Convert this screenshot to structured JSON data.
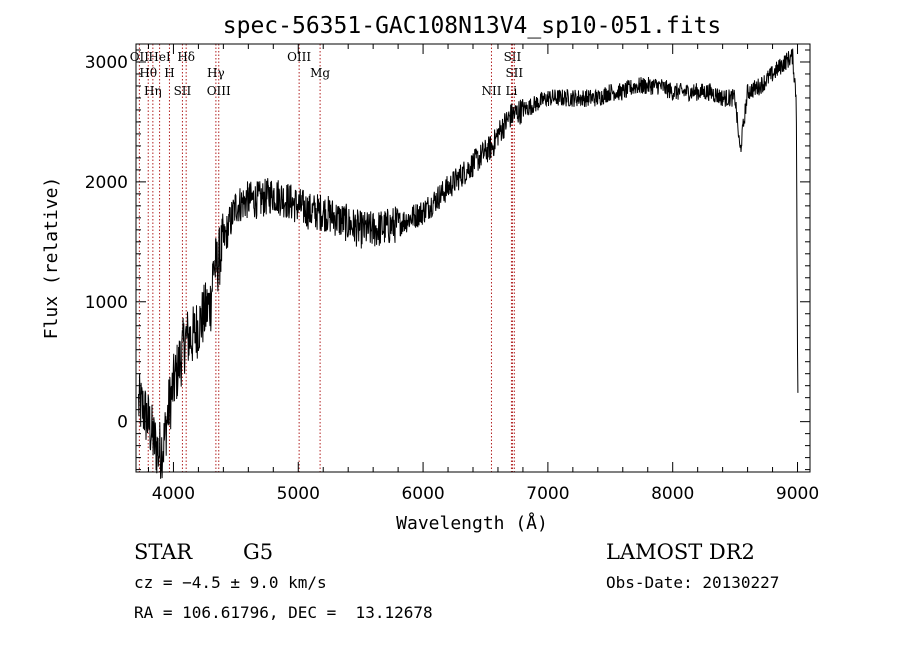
{
  "chart_data": {
    "type": "line",
    "title": "spec-56351-GAC108N13V4_sp10-051.fits",
    "xlabel": "Wavelength (Å)",
    "ylabel": "Flux (relative)",
    "xlim": [
      3700,
      9100
    ],
    "ylim": [
      -420,
      3150
    ],
    "xticks": [
      4000,
      5000,
      6000,
      7000,
      8000,
      9000
    ],
    "yticks": [
      0,
      1000,
      2000,
      3000
    ],
    "grid": false,
    "series": [
      {
        "x": [
          3720,
          3760,
          3800,
          3840,
          3880,
          3920,
          3960,
          4000,
          4050,
          4100,
          4150,
          4200,
          4250,
          4300,
          4320,
          4350,
          4400,
          4500,
          4600,
          4700,
          4800,
          4900,
          5000,
          5100,
          5200,
          5300,
          5400,
          5500,
          5600,
          5700,
          5800,
          5900,
          6000,
          6100,
          6200,
          6300,
          6400,
          6500,
          6560,
          6600,
          6700,
          6800,
          6900,
          7000,
          7100,
          7200,
          7300,
          7400,
          7500,
          7600,
          7700,
          7800,
          7900,
          8000,
          8100,
          8200,
          8300,
          8400,
          8500,
          8540,
          8600,
          8700,
          8800,
          8900,
          8960,
          8990,
          9000,
          9005
        ],
        "y": [
          150,
          100,
          0,
          -150,
          -250,
          -200,
          100,
          300,
          500,
          700,
          700,
          800,
          900,
          1000,
          1300,
          1300,
          1500,
          1800,
          1850,
          1850,
          1900,
          1850,
          1800,
          1750,
          1750,
          1700,
          1650,
          1600,
          1600,
          1620,
          1650,
          1700,
          1750,
          1850,
          1950,
          2050,
          2150,
          2250,
          2300,
          2400,
          2550,
          2600,
          2650,
          2700,
          2700,
          2700,
          2700,
          2700,
          2750,
          2750,
          2800,
          2800,
          2800,
          2750,
          2750,
          2750,
          2750,
          2700,
          2700,
          2250,
          2750,
          2800,
          2900,
          3000,
          3050,
          2700,
          600,
          0
        ]
      }
    ],
    "lines": [
      {
        "wavelength": 3727,
        "label": "OII"
      },
      {
        "wavelength": 3798,
        "label": "Hθ"
      },
      {
        "wavelength": 3835,
        "label": "Hη"
      },
      {
        "wavelength": 3889,
        "label": "HeI"
      },
      {
        "wavelength": 3968,
        "label": "H"
      },
      {
        "wavelength": 4072,
        "label": "SII"
      },
      {
        "wavelength": 4102,
        "label": "Hδ"
      },
      {
        "wavelength": 4340,
        "label": "Hγ"
      },
      {
        "wavelength": 4363,
        "label": "OIII"
      },
      {
        "wavelength": 5007,
        "label": "OIII"
      },
      {
        "wavelength": 5175,
        "label": "Mg"
      },
      {
        "wavelength": 6548,
        "label": "NII"
      },
      {
        "wavelength": 6716,
        "label": "SII"
      },
      {
        "wavelength": 6731,
        "label": "SII"
      },
      {
        "wavelength": 6708,
        "label": "Li"
      }
    ]
  },
  "info": {
    "class": "STAR",
    "subclass": "G5",
    "survey": "LAMOST DR2",
    "cz": "cz = −4.5 ± 9.0 km/s",
    "obs_date": "Obs-Date: 20130227",
    "radec": "RA = 106.61796, DEC =  13.12678"
  }
}
